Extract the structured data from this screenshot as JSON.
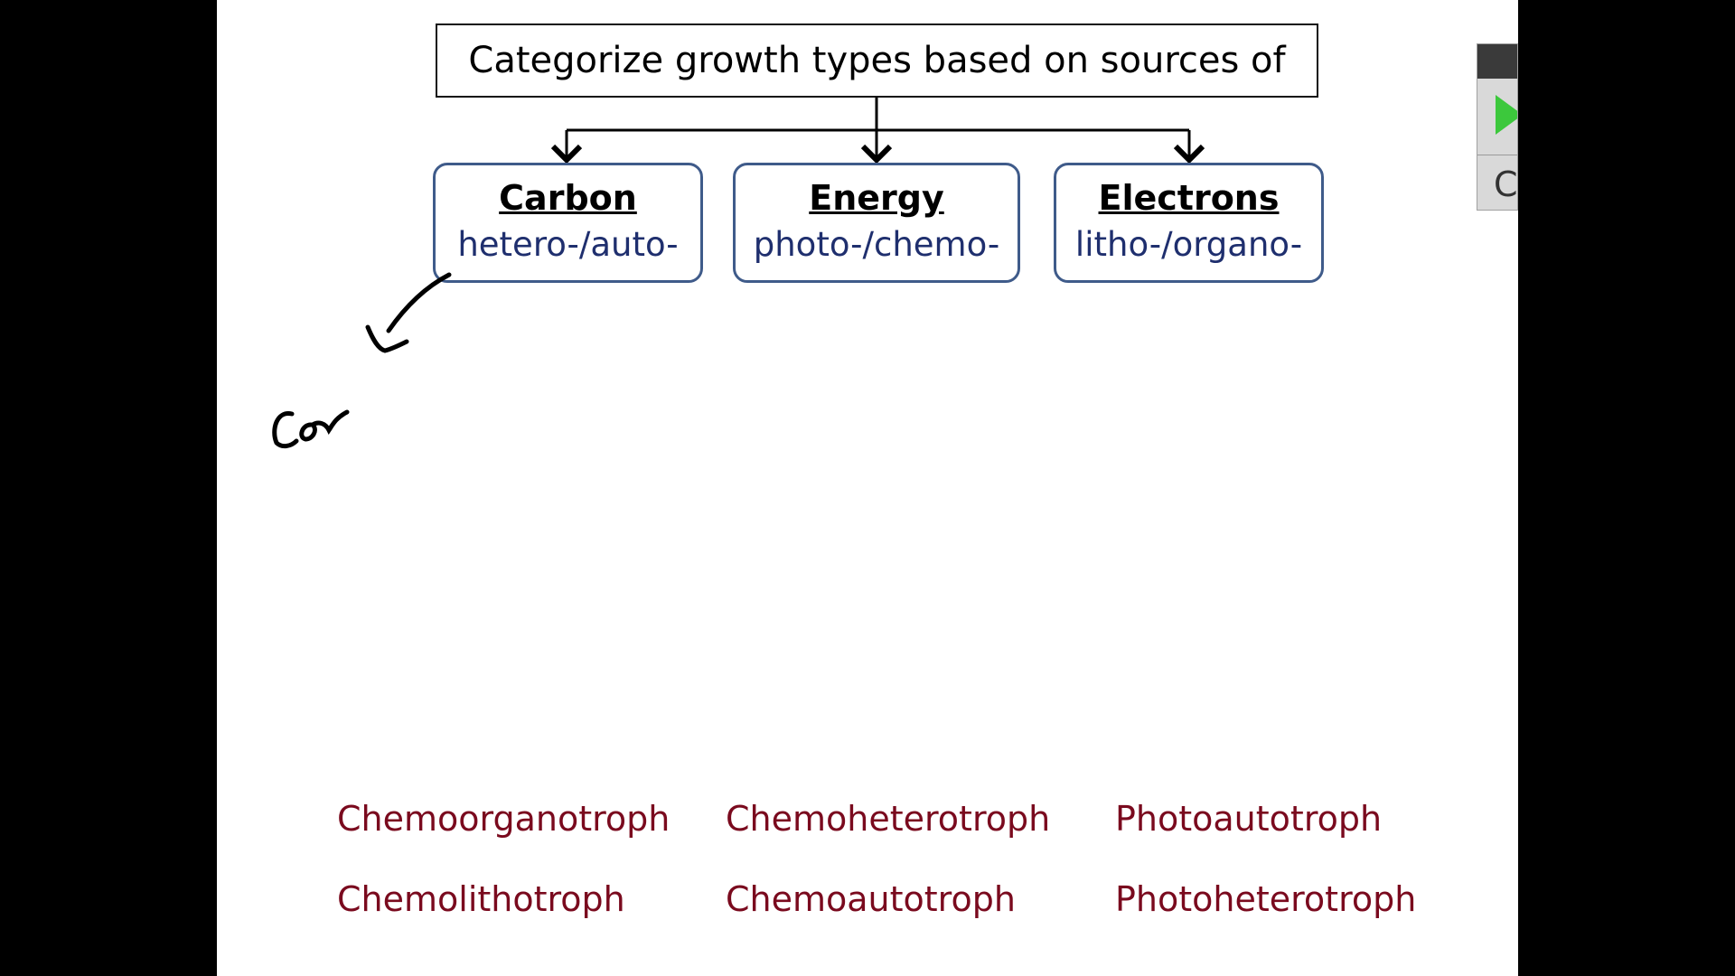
{
  "diagram": {
    "title": "Categorize growth types based on sources of",
    "categories": [
      {
        "name": "Carbon",
        "prefixes": "hetero-/auto-"
      },
      {
        "name": "Energy",
        "prefixes": "photo-/chemo-"
      },
      {
        "name": "Electrons",
        "prefixes": "litho-/organo-"
      }
    ],
    "terms": [
      "Chemoorganotroph",
      "Chemoheterotroph",
      "Photoautotroph",
      "Chemolithotroph",
      "Chemoautotroph",
      "Photoheterotroph"
    ],
    "handwritten_note": "CO"
  },
  "colors": {
    "box_border": "#3f5b8a",
    "prefix_text": "#1f2f6e",
    "term_text": "#7a0a1e",
    "play_button": "#3cc83c"
  },
  "side_widget": {
    "icons": [
      "play-icon"
    ],
    "glyph": "C"
  }
}
